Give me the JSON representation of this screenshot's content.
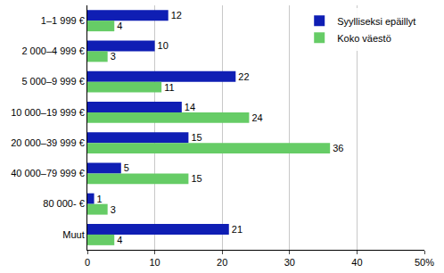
{
  "chart_data": {
    "type": "bar",
    "orientation": "horizontal",
    "categories": [
      "1–1 999 €",
      "2 000–4 999 €",
      "5 000–9 999 €",
      "10 000–19 999 €",
      "20 000–39 999 €",
      "40 000–79 999 €",
      "80 000- €",
      "Muut"
    ],
    "series": [
      {
        "name": "Syylliseksi epäillyt",
        "color": "#0f1eb4",
        "values": [
          12,
          10,
          22,
          14,
          15,
          5,
          1,
          21
        ]
      },
      {
        "name": "Koko väestö",
        "color": "#66cc66",
        "values": [
          4,
          3,
          11,
          24,
          36,
          15,
          3,
          4
        ]
      }
    ],
    "xlim": [
      0,
      50
    ],
    "xticks": [
      0,
      10,
      20,
      30,
      40,
      {
        "value": 50,
        "label": "50%"
      }
    ],
    "grid": true,
    "legend": "top right",
    "data_labels": true
  }
}
